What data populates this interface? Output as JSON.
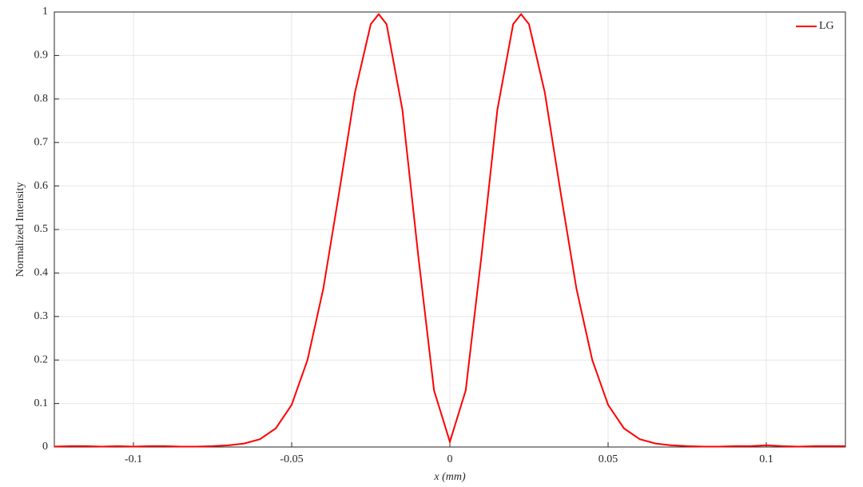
{
  "chart_data": {
    "type": "line",
    "xlabel": "x (mm)",
    "ylabel": "Normalized Intensity",
    "x": [
      -0.125,
      -0.12,
      -0.115,
      -0.11,
      -0.105,
      -0.1,
      -0.095,
      -0.09,
      -0.085,
      -0.08,
      -0.075,
      -0.07,
      -0.065,
      -0.06,
      -0.055,
      -0.05,
      -0.045,
      -0.04,
      -0.035,
      -0.03,
      -0.025,
      -0.0225,
      -0.02,
      -0.015,
      -0.01,
      -0.005,
      0,
      0.005,
      0.01,
      0.015,
      0.02,
      0.0225,
      0.025,
      0.03,
      0.035,
      0.04,
      0.045,
      0.05,
      0.055,
      0.06,
      0.065,
      0.07,
      0.075,
      0.08,
      0.085,
      0.09,
      0.095,
      0.1,
      0.105,
      0.11,
      0.115,
      0.12,
      0.125
    ],
    "series": [
      {
        "name": "LG",
        "color": "#ff0000",
        "values": [
          0.001,
          0.002,
          0.002,
          0.001,
          0.002,
          0.001,
          0.002,
          0.002,
          0.001,
          0.001,
          0.002,
          0.004,
          0.008,
          0.018,
          0.043,
          0.097,
          0.2,
          0.364,
          0.585,
          0.815,
          0.972,
          0.995,
          0.972,
          0.775,
          0.44,
          0.13,
          0.012,
          0.13,
          0.44,
          0.775,
          0.972,
          0.995,
          0.972,
          0.815,
          0.585,
          0.364,
          0.2,
          0.097,
          0.043,
          0.018,
          0.008,
          0.004,
          0.002,
          0.001,
          0.001,
          0.002,
          0.002,
          0.004,
          0.002,
          0.001,
          0.002,
          0.002,
          0.002
        ]
      }
    ],
    "xlim": [
      -0.125,
      0.125
    ],
    "xticks": [
      -0.1,
      -0.05,
      0,
      0.05,
      0.1
    ],
    "ylim": [
      0,
      1
    ],
    "yticks": [
      0,
      0.1,
      0.2,
      0.3,
      0.4,
      0.5,
      0.6,
      0.7,
      0.8,
      0.9,
      1
    ],
    "grid": true,
    "legend": "upper-right"
  }
}
